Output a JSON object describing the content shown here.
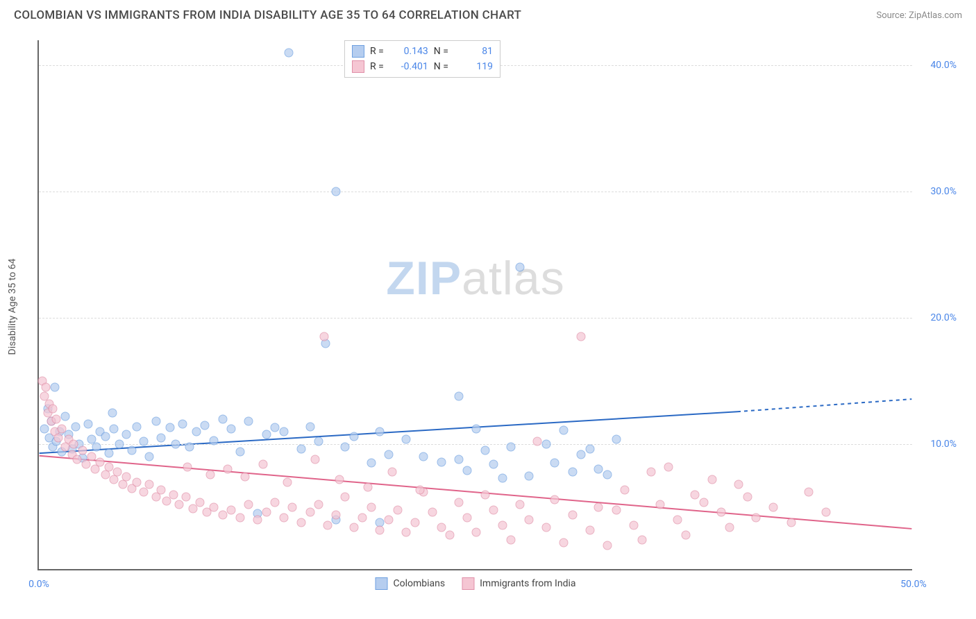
{
  "title": "COLOMBIAN VS IMMIGRANTS FROM INDIA DISABILITY AGE 35 TO 64 CORRELATION CHART",
  "source": "Source: ZipAtlas.com",
  "y_axis_title": "Disability Age 35 to 64",
  "watermark": {
    "part1": "ZIP",
    "part2": "atlas"
  },
  "chart": {
    "type": "scatter",
    "xlim": [
      0,
      50
    ],
    "ylim": [
      0,
      42
    ],
    "x_ticks": [
      {
        "v": 0,
        "label": "0.0%",
        "color": "#4a86e8"
      },
      {
        "v": 50,
        "label": "50.0%",
        "color": "#4a86e8"
      }
    ],
    "y_ticks": [
      {
        "v": 10,
        "label": "10.0%",
        "color": "#4a86e8"
      },
      {
        "v": 20,
        "label": "20.0%",
        "color": "#4a86e8"
      },
      {
        "v": 30,
        "label": "30.0%",
        "color": "#4a86e8"
      },
      {
        "v": 40,
        "label": "40.0%",
        "color": "#4a86e8"
      }
    ],
    "grid_color": "#dcdcdc",
    "background_color": "#ffffff",
    "marker_radius": 6.5,
    "marker_opacity": 0.7,
    "series": [
      {
        "name": "Colombians",
        "fill": "#b5cdef",
        "stroke": "#6ea0e0",
        "line_color": "#2a69c4",
        "r_value": "0.143",
        "n_value": "81",
        "trend": {
          "x1": 0,
          "y1": 9.2,
          "x2": 40,
          "y2": 12.5,
          "x2_dash": 50,
          "y2_dash": 13.5
        },
        "points": [
          [
            0.3,
            11.2
          ],
          [
            0.5,
            12.8
          ],
          [
            0.6,
            10.5
          ],
          [
            0.7,
            11.8
          ],
          [
            0.8,
            9.8
          ],
          [
            0.9,
            14.5
          ],
          [
            1.0,
            10.2
          ],
          [
            1.2,
            11.0
          ],
          [
            1.3,
            9.4
          ],
          [
            1.5,
            12.2
          ],
          [
            1.7,
            10.8
          ],
          [
            1.9,
            9.6
          ],
          [
            2.1,
            11.4
          ],
          [
            2.3,
            10.0
          ],
          [
            2.5,
            8.9
          ],
          [
            2.8,
            11.6
          ],
          [
            3.0,
            10.4
          ],
          [
            3.3,
            9.8
          ],
          [
            3.5,
            11.0
          ],
          [
            3.8,
            10.6
          ],
          [
            4.0,
            9.3
          ],
          [
            4.3,
            11.2
          ],
          [
            4.6,
            10.0
          ],
          [
            5.0,
            10.8
          ],
          [
            5.3,
            9.5
          ],
          [
            5.6,
            11.4
          ],
          [
            6.0,
            10.2
          ],
          [
            6.3,
            9.0
          ],
          [
            6.7,
            11.8
          ],
          [
            7.0,
            10.5
          ],
          [
            7.5,
            11.3
          ],
          [
            7.8,
            10.0
          ],
          [
            8.2,
            11.6
          ],
          [
            8.6,
            9.8
          ],
          [
            9.0,
            11.0
          ],
          [
            9.5,
            11.5
          ],
          [
            10.0,
            10.3
          ],
          [
            10.5,
            12.0
          ],
          [
            11.0,
            11.2
          ],
          [
            11.5,
            9.4
          ],
          [
            12.0,
            11.8
          ],
          [
            12.5,
            4.5
          ],
          [
            13.0,
            10.8
          ],
          [
            13.5,
            11.3
          ],
          [
            14.0,
            11.0
          ],
          [
            14.3,
            41.0
          ],
          [
            15.0,
            9.6
          ],
          [
            15.5,
            11.4
          ],
          [
            16.0,
            10.2
          ],
          [
            16.4,
            18.0
          ],
          [
            17.0,
            30.0
          ],
          [
            17.5,
            9.8
          ],
          [
            18.0,
            10.6
          ],
          [
            19.0,
            8.5
          ],
          [
            19.5,
            11.0
          ],
          [
            20.0,
            9.2
          ],
          [
            21.0,
            10.4
          ],
          [
            22.0,
            9.0
          ],
          [
            23.0,
            8.6
          ],
          [
            24.0,
            13.8
          ],
          [
            24.5,
            7.9
          ],
          [
            25.0,
            11.2
          ],
          [
            26.0,
            8.4
          ],
          [
            27.0,
            9.8
          ],
          [
            27.5,
            24.0
          ],
          [
            28.0,
            7.5
          ],
          [
            29.0,
            10.0
          ],
          [
            30.0,
            11.1
          ],
          [
            30.5,
            7.8
          ],
          [
            31.0,
            9.2
          ],
          [
            32.0,
            8.0
          ],
          [
            33.0,
            10.4
          ],
          [
            17.0,
            4.0
          ],
          [
            19.5,
            3.8
          ],
          [
            24.0,
            8.8
          ],
          [
            25.5,
            9.5
          ],
          [
            26.5,
            7.3
          ],
          [
            29.5,
            8.5
          ],
          [
            31.5,
            9.6
          ],
          [
            32.5,
            7.6
          ],
          [
            4.2,
            12.5
          ]
        ]
      },
      {
        "name": "Immigrants from India",
        "fill": "#f5c6d3",
        "stroke": "#e08fa8",
        "line_color": "#e0648a",
        "r_value": "-0.401",
        "n_value": "119",
        "trend": {
          "x1": 0,
          "y1": 9.0,
          "x2": 50,
          "y2": 3.2
        },
        "points": [
          [
            0.2,
            15.0
          ],
          [
            0.3,
            13.8
          ],
          [
            0.4,
            14.5
          ],
          [
            0.5,
            12.5
          ],
          [
            0.6,
            13.2
          ],
          [
            0.7,
            11.8
          ],
          [
            0.8,
            12.8
          ],
          [
            0.9,
            11.0
          ],
          [
            1.0,
            12.0
          ],
          [
            1.1,
            10.5
          ],
          [
            1.3,
            11.2
          ],
          [
            1.5,
            9.8
          ],
          [
            1.7,
            10.4
          ],
          [
            1.9,
            9.2
          ],
          [
            2.0,
            10.0
          ],
          [
            2.2,
            8.8
          ],
          [
            2.5,
            9.5
          ],
          [
            2.7,
            8.4
          ],
          [
            3.0,
            9.0
          ],
          [
            3.2,
            8.0
          ],
          [
            3.5,
            8.6
          ],
          [
            3.8,
            7.6
          ],
          [
            4.0,
            8.2
          ],
          [
            4.3,
            7.2
          ],
          [
            4.5,
            7.8
          ],
          [
            4.8,
            6.8
          ],
          [
            5.0,
            7.4
          ],
          [
            5.3,
            6.5
          ],
          [
            5.6,
            7.0
          ],
          [
            6.0,
            6.2
          ],
          [
            6.3,
            6.8
          ],
          [
            6.7,
            5.8
          ],
          [
            7.0,
            6.4
          ],
          [
            7.3,
            5.5
          ],
          [
            7.7,
            6.0
          ],
          [
            8.0,
            5.2
          ],
          [
            8.4,
            5.8
          ],
          [
            8.8,
            4.9
          ],
          [
            9.2,
            5.4
          ],
          [
            9.6,
            4.6
          ],
          [
            10.0,
            5.0
          ],
          [
            10.5,
            4.4
          ],
          [
            11.0,
            4.8
          ],
          [
            11.5,
            4.2
          ],
          [
            12.0,
            5.2
          ],
          [
            12.5,
            4.0
          ],
          [
            13.0,
            4.6
          ],
          [
            13.5,
            5.4
          ],
          [
            14.0,
            4.2
          ],
          [
            14.5,
            5.0
          ],
          [
            15.0,
            3.8
          ],
          [
            15.5,
            4.6
          ],
          [
            16.0,
            5.2
          ],
          [
            16.5,
            3.6
          ],
          [
            17.0,
            4.4
          ],
          [
            17.5,
            5.8
          ],
          [
            18.0,
            3.4
          ],
          [
            18.5,
            4.2
          ],
          [
            19.0,
            5.0
          ],
          [
            19.5,
            3.2
          ],
          [
            20.0,
            4.0
          ],
          [
            20.5,
            4.8
          ],
          [
            21.0,
            3.0
          ],
          [
            21.5,
            3.8
          ],
          [
            22.0,
            6.2
          ],
          [
            22.5,
            4.6
          ],
          [
            23.0,
            3.4
          ],
          [
            23.5,
            2.8
          ],
          [
            24.0,
            5.4
          ],
          [
            24.5,
            4.2
          ],
          [
            25.0,
            3.0
          ],
          [
            25.5,
            6.0
          ],
          [
            26.0,
            4.8
          ],
          [
            26.5,
            3.6
          ],
          [
            27.0,
            2.4
          ],
          [
            27.5,
            5.2
          ],
          [
            28.0,
            4.0
          ],
          [
            28.5,
            10.2
          ],
          [
            29.0,
            3.4
          ],
          [
            29.5,
            5.6
          ],
          [
            30.0,
            2.2
          ],
          [
            30.5,
            4.4
          ],
          [
            31.0,
            18.5
          ],
          [
            31.5,
            3.2
          ],
          [
            32.0,
            5.0
          ],
          [
            32.5,
            2.0
          ],
          [
            33.0,
            4.8
          ],
          [
            33.5,
            6.4
          ],
          [
            34.0,
            3.6
          ],
          [
            34.5,
            2.4
          ],
          [
            35.0,
            7.8
          ],
          [
            35.5,
            5.2
          ],
          [
            36.0,
            8.2
          ],
          [
            36.5,
            4.0
          ],
          [
            37.0,
            2.8
          ],
          [
            37.5,
            6.0
          ],
          [
            38.0,
            5.4
          ],
          [
            38.5,
            7.2
          ],
          [
            39.0,
            4.6
          ],
          [
            39.5,
            3.4
          ],
          [
            40.0,
            6.8
          ],
          [
            40.5,
            5.8
          ],
          [
            41.0,
            4.2
          ],
          [
            42.0,
            5.0
          ],
          [
            43.0,
            3.8
          ],
          [
            44.0,
            6.2
          ],
          [
            45.0,
            4.6
          ],
          [
            16.3,
            18.5
          ],
          [
            8.5,
            8.2
          ],
          [
            9.8,
            7.6
          ],
          [
            10.8,
            8.0
          ],
          [
            11.8,
            7.4
          ],
          [
            12.8,
            8.4
          ],
          [
            14.2,
            7.0
          ],
          [
            15.8,
            8.8
          ],
          [
            17.2,
            7.2
          ],
          [
            18.8,
            6.6
          ],
          [
            20.2,
            7.8
          ],
          [
            21.8,
            6.4
          ]
        ]
      }
    ],
    "legend_bottom": [
      {
        "label": "Colombians",
        "fill": "#b5cdef",
        "stroke": "#6ea0e0"
      },
      {
        "label": "Immigrants from India",
        "fill": "#f5c6d3",
        "stroke": "#e08fa8"
      }
    ],
    "legend_top": {
      "r_label": "R =",
      "n_label": "N =",
      "value_color": "#4a86e8"
    }
  }
}
